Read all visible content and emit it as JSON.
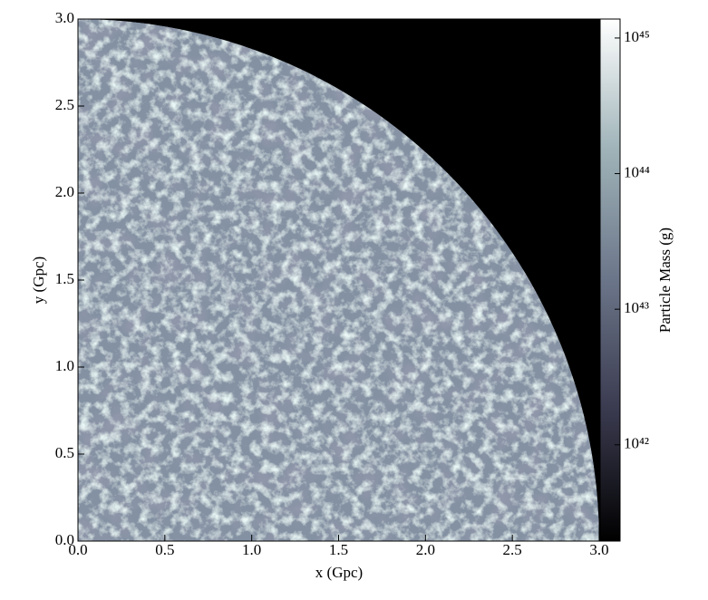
{
  "chart_data": {
    "type": "image",
    "xlabel": "x  (Gpc)",
    "ylabel": "y  (Gpc)",
    "xlim": [
      0,
      3
    ],
    "ylim": [
      0,
      3
    ],
    "xticks": [
      {
        "value": 0,
        "label": "0.0"
      },
      0.5,
      {
        "value": 1,
        "label": "1.0"
      },
      1.5,
      {
        "value": 2,
        "label": "2.0"
      },
      2.5,
      {
        "value": 3,
        "label": "3.0"
      }
    ],
    "yticks": [
      {
        "value": 0,
        "label": "0.0"
      },
      0.5,
      {
        "value": 1,
        "label": "1.0"
      },
      1.5,
      {
        "value": 2,
        "label": "2.0"
      },
      2.5,
      {
        "value": 3,
        "label": "3.0"
      }
    ],
    "region": {
      "shape": "quarter-disk",
      "radius": 3,
      "color": "#8391a3"
    },
    "background": "#000000",
    "colorbar": {
      "label": "Particle Mass  (g)",
      "scale": "log",
      "lim": [
        1.95e+41,
        1.38e+45
      ],
      "ticks": [
        {
          "value": 1e+42,
          "label": "10⁴²"
        },
        {
          "value": 1e+43,
          "label": "10⁴³"
        },
        {
          "value": 1e+44,
          "label": "10⁴⁴"
        },
        {
          "value": 1e+45,
          "label": "10⁴⁵"
        }
      ],
      "colormap": [
        "#000000",
        "#3a3a4f",
        "#6b7589",
        "#9fb3b8",
        "#ffffff"
      ]
    }
  }
}
